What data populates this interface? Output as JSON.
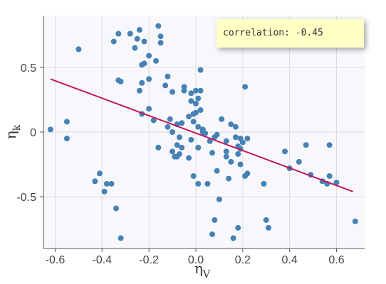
{
  "chart_data": {
    "type": "scatter",
    "title": "",
    "xlabel": {
      "main": "η",
      "sub": "V"
    },
    "ylabel": {
      "main": "η",
      "sub": "k"
    },
    "xlim": [
      -0.65,
      0.72
    ],
    "ylim": [
      -0.9,
      0.9
    ],
    "x_ticks": [
      -0.6,
      -0.4,
      -0.2,
      0.0,
      0.2,
      0.4,
      0.6
    ],
    "x_tick_labels": [
      "-0.6",
      "-0.4",
      "-0.2",
      "0.0",
      "0.2",
      "0.4",
      "0.6"
    ],
    "y_ticks": [
      -0.5,
      0,
      0.5
    ],
    "y_tick_labels": [
      "-0.5",
      "0",
      "0.5"
    ],
    "grid": true,
    "point_color": "#4682b4",
    "line_color": "#c2185b",
    "background_color": "#f8f8fc",
    "regression_line": {
      "x": [
        -0.62,
        0.67
      ],
      "y": [
        0.41,
        -0.46
      ]
    },
    "points": [
      [
        -0.62,
        0.02
      ],
      [
        -0.55,
        0.08
      ],
      [
        -0.55,
        -0.05
      ],
      [
        -0.5,
        0.64
      ],
      [
        -0.43,
        -0.38
      ],
      [
        -0.41,
        -0.32
      ],
      [
        -0.39,
        -0.46
      ],
      [
        -0.38,
        -0.4
      ],
      [
        -0.36,
        -0.4
      ],
      [
        -0.35,
        0.7
      ],
      [
        -0.34,
        -0.59
      ],
      [
        -0.33,
        0.4
      ],
      [
        -0.33,
        0.76
      ],
      [
        -0.32,
        0.39
      ],
      [
        -0.32,
        -0.82
      ],
      [
        -0.28,
        0.76
      ],
      [
        -0.26,
        0.65
      ],
      [
        -0.25,
        0.72
      ],
      [
        -0.24,
        0.32
      ],
      [
        -0.24,
        0.79
      ],
      [
        -0.23,
        0.38
      ],
      [
        -0.23,
        0.14
      ],
      [
        -0.23,
        0.52
      ],
      [
        -0.22,
        0.53
      ],
      [
        -0.22,
        0.7
      ],
      [
        -0.2,
        0.41
      ],
      [
        -0.2,
        0.18
      ],
      [
        -0.2,
        0.59
      ],
      [
        -0.18,
        0.09
      ],
      [
        -0.17,
        0.55
      ],
      [
        -0.16,
        -0.12
      ],
      [
        -0.16,
        0.82
      ],
      [
        -0.15,
        0.74
      ],
      [
        -0.15,
        0.69
      ],
      [
        -0.13,
        0.36
      ],
      [
        -0.12,
        0.04
      ],
      [
        -0.12,
        0.43
      ],
      [
        -0.11,
        0.1
      ],
      [
        -0.1,
        -0.15
      ],
      [
        -0.1,
        0.31
      ],
      [
        -0.1,
        0.0
      ],
      [
        -0.09,
        -0.19
      ],
      [
        -0.08,
        -0.19
      ],
      [
        -0.08,
        0.06
      ],
      [
        -0.08,
        -0.1
      ],
      [
        -0.07,
        -0.17
      ],
      [
        -0.07,
        -0.04
      ],
      [
        -0.06,
        0.07
      ],
      [
        -0.06,
        -0.12
      ],
      [
        -0.05,
        0.35
      ],
      [
        -0.05,
        0.32
      ],
      [
        -0.03,
        0.12
      ],
      [
        -0.03,
        -0.2
      ],
      [
        -0.02,
        0.3
      ],
      [
        -0.02,
        -0.06
      ],
      [
        -0.02,
        0.24
      ],
      [
        -0.01,
        0.08
      ],
      [
        -0.01,
        -0.34
      ],
      [
        -0.01,
        0.14
      ],
      [
        0.0,
        0.15
      ],
      [
        0.0,
        0.32
      ],
      [
        0.0,
        0.22
      ],
      [
        0.01,
        0.04
      ],
      [
        0.01,
        0.26
      ],
      [
        0.01,
        -0.4
      ],
      [
        0.01,
        -0.12
      ],
      [
        0.02,
        0.32
      ],
      [
        0.02,
        0.48
      ],
      [
        0.02,
        0.17
      ],
      [
        0.03,
        0.02
      ],
      [
        0.03,
        0.0
      ],
      [
        0.04,
        -0.01
      ],
      [
        0.05,
        -0.4
      ],
      [
        0.06,
        -0.07
      ],
      [
        0.07,
        -0.16
      ],
      [
        0.07,
        -0.79
      ],
      [
        0.08,
        -0.68
      ],
      [
        0.08,
        -0.04
      ],
      [
        0.09,
        -0.3
      ],
      [
        0.09,
        -0.02
      ],
      [
        0.1,
        -0.52
      ],
      [
        0.11,
        0.1
      ],
      [
        0.13,
        -0.19
      ],
      [
        0.13,
        -0.15
      ],
      [
        0.13,
        -0.07
      ],
      [
        0.14,
        -0.36
      ],
      [
        0.15,
        -0.23
      ],
      [
        0.15,
        0.06
      ],
      [
        0.16,
        -0.82
      ],
      [
        0.17,
        -0.04
      ],
      [
        0.17,
        0.04
      ],
      [
        0.18,
        -0.17
      ],
      [
        0.18,
        -0.11
      ],
      [
        0.18,
        -0.74
      ],
      [
        0.19,
        -0.13
      ],
      [
        0.19,
        -0.25
      ],
      [
        0.19,
        -0.05
      ],
      [
        0.2,
        -0.08
      ],
      [
        0.21,
        -0.34
      ],
      [
        0.21,
        0.35
      ],
      [
        0.22,
        -0.32
      ],
      [
        0.22,
        -0.05
      ],
      [
        0.29,
        -0.4
      ],
      [
        0.3,
        -0.68
      ],
      [
        0.31,
        -0.74
      ],
      [
        0.38,
        -0.15
      ],
      [
        0.4,
        -0.28
      ],
      [
        0.44,
        -0.23
      ],
      [
        0.47,
        -0.1
      ],
      [
        0.49,
        -0.33
      ],
      [
        0.54,
        -0.38
      ],
      [
        0.56,
        -0.4
      ],
      [
        0.57,
        -0.34
      ],
      [
        0.57,
        -0.1
      ],
      [
        0.6,
        -0.39
      ],
      [
        0.68,
        -0.69
      ]
    ]
  },
  "annotation": {
    "label": "correlation:",
    "value": "-0.45"
  }
}
